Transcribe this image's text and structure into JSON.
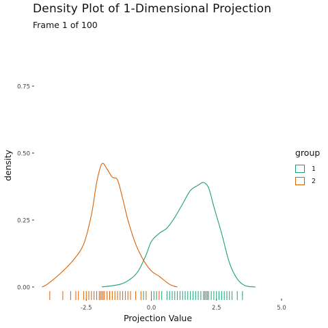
{
  "chart_title": "Density Plot of 1-Dimensional Projection",
  "subtitle": "Frame 1 of 100",
  "legend": {
    "title": "group",
    "items": [
      {
        "label": "1",
        "color": "#1b9e77"
      },
      {
        "label": "2",
        "color": "#d95f02"
      }
    ]
  },
  "chart_data": {
    "type": "area",
    "xlabel": "Projection Value",
    "ylabel": "density",
    "xlim": [
      -4.5,
      5.0
    ],
    "ylim": [
      0,
      0.75
    ],
    "x_ticks": [
      -2.5,
      0.0,
      2.5,
      5.0
    ],
    "x_tick_labels": [
      "-2.5",
      "0.0",
      "2.5",
      "5.0"
    ],
    "y_ticks": [
      0,
      0.25,
      0.5,
      0.75
    ],
    "y_tick_labels": [
      "0.00",
      "0.25",
      "0.50",
      "0.75"
    ],
    "grid": false,
    "legend_position": "right",
    "series": [
      {
        "name": "1",
        "color": "#1b9e77",
        "x": [
          -1.9,
          -1.2,
          -0.8,
          -0.5,
          -0.2,
          0.0,
          0.3,
          0.6,
          0.9,
          1.2,
          1.5,
          1.8,
          2.0,
          2.2,
          2.4,
          2.7,
          3.0,
          3.3,
          3.6,
          4.0
        ],
        "y": [
          0.0,
          0.01,
          0.03,
          0.06,
          0.12,
          0.17,
          0.2,
          0.22,
          0.26,
          0.31,
          0.36,
          0.38,
          0.39,
          0.37,
          0.3,
          0.2,
          0.09,
          0.03,
          0.005,
          0.0
        ],
        "rug": [
          -0.3,
          0.0,
          0.1,
          0.2,
          0.4,
          0.6,
          0.7,
          0.8,
          0.9,
          1.0,
          1.1,
          1.2,
          1.3,
          1.4,
          1.5,
          1.6,
          1.7,
          1.8,
          1.9,
          2.0,
          2.05,
          2.1,
          2.15,
          2.2,
          2.3,
          2.4,
          2.5,
          2.6,
          2.7,
          2.8,
          2.9,
          3.0,
          3.1,
          3.3,
          3.5
        ]
      },
      {
        "name": "2",
        "color": "#d95f02",
        "x": [
          -4.2,
          -4.0,
          -3.5,
          -3.0,
          -2.6,
          -2.3,
          -2.1,
          -1.9,
          -1.7,
          -1.5,
          -1.3,
          -1.1,
          -0.9,
          -0.6,
          -0.3,
          0.0,
          0.3,
          0.7,
          1.0
        ],
        "y": [
          0.0,
          0.01,
          0.05,
          0.1,
          0.16,
          0.27,
          0.39,
          0.46,
          0.44,
          0.41,
          0.4,
          0.33,
          0.25,
          0.16,
          0.1,
          0.06,
          0.04,
          0.01,
          0.0
        ],
        "rug": [
          -3.9,
          -3.4,
          -3.1,
          -2.9,
          -2.8,
          -2.6,
          -2.5,
          -2.4,
          -2.3,
          -2.2,
          -2.1,
          -2.0,
          -1.95,
          -1.9,
          -1.85,
          -1.8,
          -1.7,
          -1.6,
          -1.5,
          -1.4,
          -1.3,
          -1.2,
          -1.1,
          -1.0,
          -0.9,
          -0.8,
          -0.6,
          -0.4,
          -0.2,
          0.3
        ]
      }
    ]
  }
}
